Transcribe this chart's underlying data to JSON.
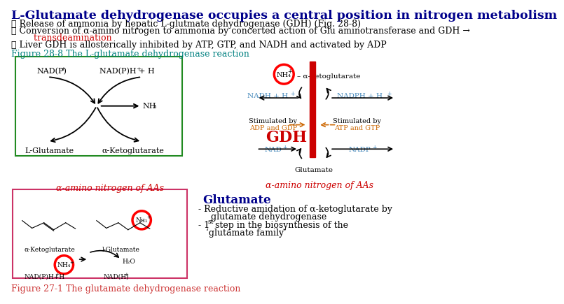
{
  "bg_color": "#ffffff",
  "title": "L-Glutamate dehydrogenase occupies a central position in nitrogen metabolism",
  "title_color": "#00008B",
  "title_fontsize": 12.5,
  "line1": "① Release of ammonia by hepatic L-glutmate dehydrogenase (GDH) (Fig. 28-8)",
  "line1_color": "#000000",
  "line2_a": "② Conversion of α-amino nitrogen to ammonia by concerted action of Glu aminotransferase and GDH →",
  "line2_color": "#000000",
  "line3": "    transdeamination",
  "line3_color": "#cc0000",
  "line4": "③ Liver GDH is allosterically inhibited by ATP, GTP, and NADH and activated by ADP",
  "line4_color": "#000000",
  "fig1_label": "Figure 28-8 The L-glutamate dehydrogenase reaction",
  "fig1_label_color": "#008080",
  "fig2_label": "Figure 27-1 The glutamate dehydrogenase reaction",
  "fig2_label_color": "#cc3333",
  "alpha_amino_left": "α-amino nitrogen of AAs",
  "alpha_amino_right": "α-amino nitrogen of AAs",
  "alpha_amino_color_left": "#cc0000",
  "alpha_amino_color_right": "#cc0000",
  "glutamate_title": "Glutamate",
  "glutamate_title_color": "#00008B",
  "text_color": "#000000",
  "gdh_color": "#cc0000",
  "nadh_color": "#4488bb",
  "nadph_color": "#4488bb",
  "nad_color": "#4488bb",
  "nadp_color": "#4488bb",
  "stimulated_by_color": "#cc6600",
  "box1_edge": "#228B22",
  "box2_edge": "#cc3366"
}
